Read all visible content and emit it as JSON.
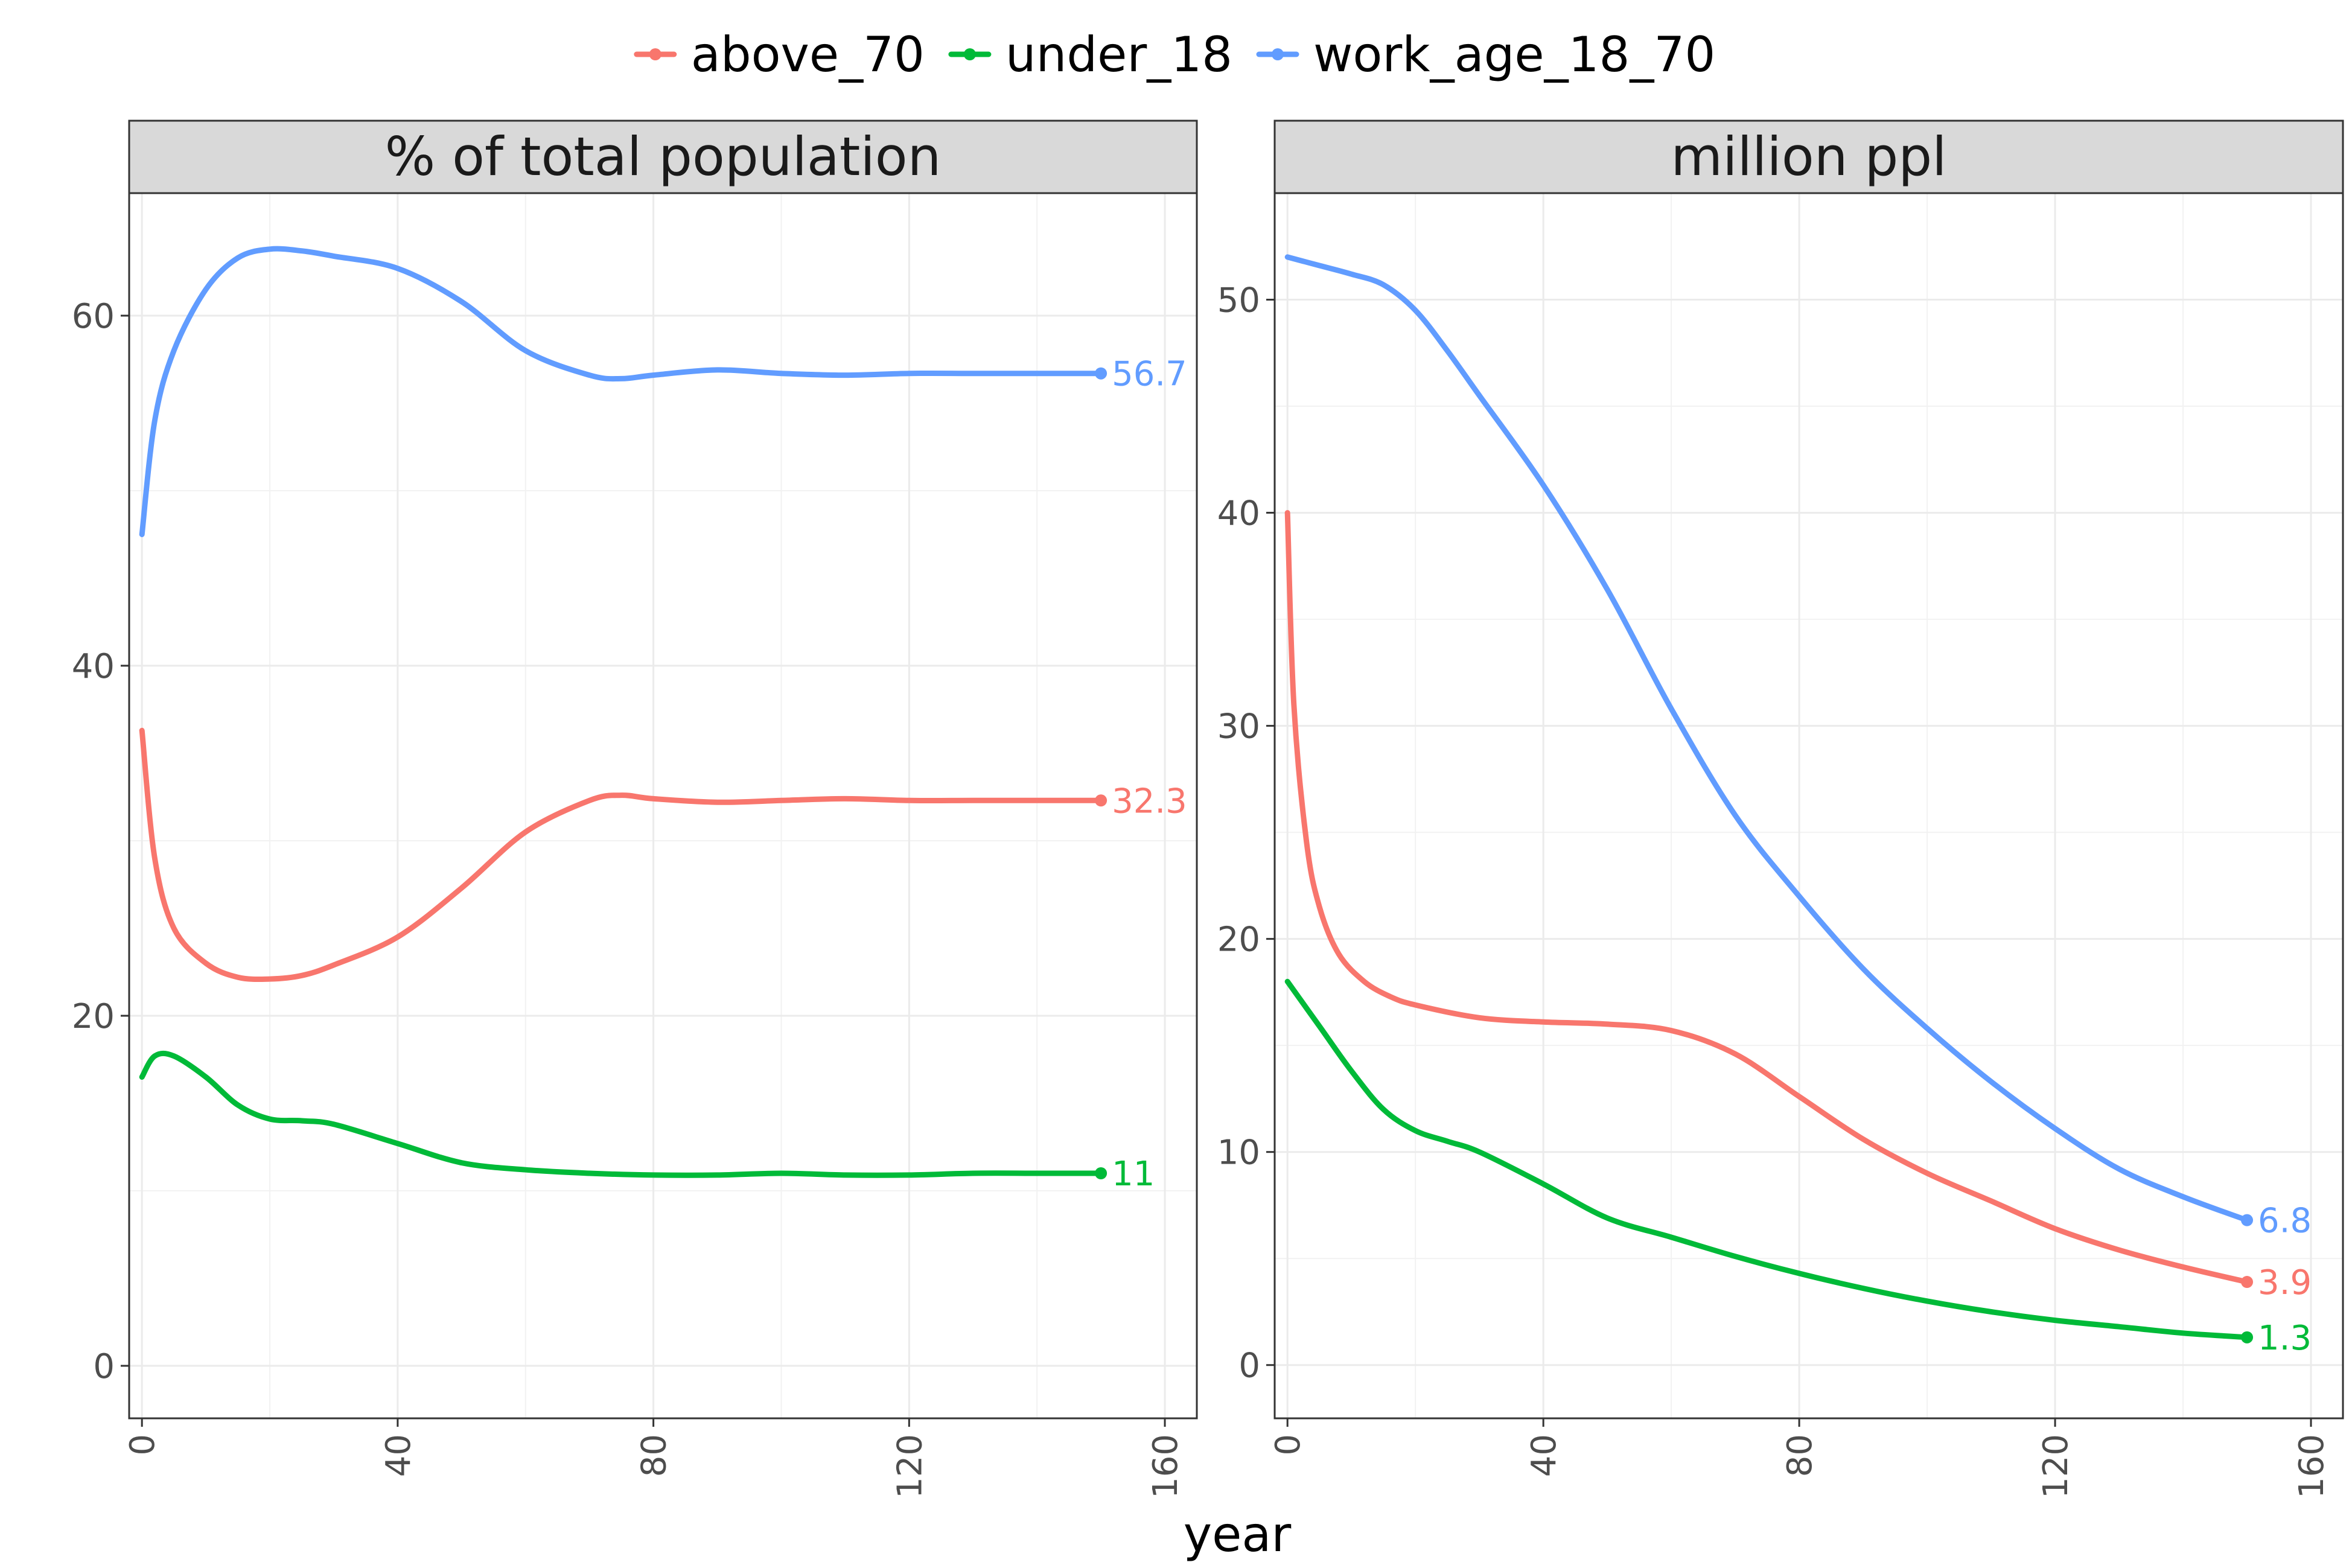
{
  "chart_data": {
    "type": "line",
    "xlabel": "year",
    "legend_position": "top",
    "grid": true,
    "legend": [
      {
        "name": "above_70",
        "color": "#F8766D"
      },
      {
        "name": "under_18",
        "color": "#00BA38"
      },
      {
        "name": "work_age_18_70",
        "color": "#619CFF"
      }
    ],
    "panels": [
      {
        "strip": "% of total population",
        "xlim": [
          -2,
          165
        ],
        "ylim": [
          -3,
          67
        ],
        "xticks": [
          0,
          40,
          80,
          120,
          160
        ],
        "yticks": [
          0,
          20,
          40,
          60
        ],
        "series": [
          {
            "name": "above_70",
            "color": "#F8766D",
            "x": [
              0,
              2,
              5,
              10,
              15,
              20,
              25,
              30,
              40,
              50,
              60,
              70,
              75,
              80,
              90,
              100,
              110,
              120,
              130,
              140,
              150
            ],
            "y": [
              36.3,
              29,
              25,
              23,
              22.2,
              22.1,
              22.3,
              22.9,
              24.5,
              27.3,
              30.5,
              32.3,
              32.6,
              32.4,
              32.2,
              32.3,
              32.4,
              32.3,
              32.3,
              32.3,
              32.3
            ],
            "end_label": "32.3"
          },
          {
            "name": "under_18",
            "color": "#00BA38",
            "x": [
              0,
              2,
              5,
              10,
              15,
              20,
              25,
              30,
              40,
              50,
              60,
              70,
              80,
              90,
              100,
              110,
              120,
              130,
              140,
              150
            ],
            "y": [
              16.5,
              17.7,
              17.7,
              16.5,
              14.9,
              14.1,
              14.0,
              13.8,
              12.7,
              11.6,
              11.2,
              11.0,
              10.9,
              10.9,
              11.0,
              10.9,
              10.9,
              11.0,
              11.0,
              11.0
            ],
            "end_label": "11"
          },
          {
            "name": "work_age_18_70",
            "color": "#619CFF",
            "x": [
              0,
              2,
              5,
              10,
              15,
              20,
              25,
              30,
              40,
              50,
              60,
              70,
              75,
              80,
              90,
              100,
              110,
              120,
              130,
              140,
              150
            ],
            "y": [
              47.5,
              54,
              58,
              61.5,
              63.3,
              63.8,
              63.7,
              63.4,
              62.7,
              60.8,
              58,
              56.6,
              56.4,
              56.6,
              56.9,
              56.7,
              56.6,
              56.7,
              56.7,
              56.7,
              56.7
            ],
            "end_label": "56.7"
          }
        ]
      },
      {
        "strip": "million ppl",
        "xlim": [
          -2,
          165
        ],
        "ylim": [
          -2.5,
          55
        ],
        "xticks": [
          0,
          40,
          80,
          120,
          160
        ],
        "yticks": [
          0,
          10,
          20,
          30,
          40,
          50
        ],
        "series": [
          {
            "name": "above_70",
            "color": "#F8766D",
            "x": [
              0,
              1,
              3,
              5,
              8,
              12,
              16,
              20,
              30,
              40,
              50,
              60,
              70,
              80,
              90,
              100,
              110,
              120,
              130,
              140,
              150
            ],
            "y": [
              40,
              31,
              24.5,
              21.5,
              19.3,
              18.0,
              17.3,
              16.9,
              16.3,
              16.1,
              16.0,
              15.7,
              14.6,
              12.6,
              10.6,
              9.0,
              7.7,
              6.4,
              5.4,
              4.6,
              3.9
            ],
            "end_label": "3.9"
          },
          {
            "name": "under_18",
            "color": "#00BA38",
            "x": [
              0,
              5,
              10,
              15,
              20,
              25,
              30,
              40,
              50,
              60,
              70,
              80,
              90,
              100,
              110,
              120,
              130,
              140,
              150
            ],
            "y": [
              18,
              15.9,
              13.8,
              12.0,
              11.0,
              10.5,
              10.0,
              8.5,
              6.9,
              6.0,
              5.1,
              4.3,
              3.6,
              3.0,
              2.5,
              2.1,
              1.8,
              1.5,
              1.3
            ],
            "end_label": "1.3"
          },
          {
            "name": "work_age_18_70",
            "color": "#619CFF",
            "x": [
              0,
              5,
              10,
              15,
              20,
              25,
              30,
              40,
              50,
              60,
              70,
              80,
              90,
              100,
              110,
              120,
              130,
              140,
              150
            ],
            "y": [
              52,
              51.6,
              51.2,
              50.7,
              49.5,
              47.6,
              45.5,
              41.3,
              36.4,
              30.8,
              25.8,
              22.0,
              18.6,
              15.8,
              13.3,
              11.1,
              9.2,
              7.9,
              6.8
            ],
            "end_label": "6.8"
          }
        ]
      }
    ]
  }
}
